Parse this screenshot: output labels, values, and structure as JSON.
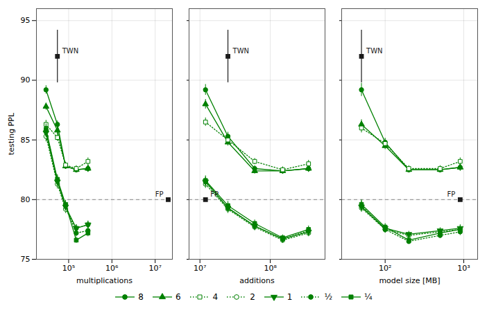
{
  "chart_data": [
    {
      "type": "line",
      "log": "x",
      "grid": true,
      "legend": "bottom",
      "xlabel": "multiplications",
      "ylabel": "testing PPL",
      "xlim": [
        18000,
        25000000
      ],
      "xticks": [
        {
          "value": 100000,
          "label": "10⁵"
        },
        {
          "value": 1000000,
          "label": "10⁶"
        },
        {
          "value": 10000000,
          "label": "10⁷"
        }
      ],
      "ylim": [
        75,
        96
      ],
      "yticks": [
        75,
        80,
        85,
        90,
        95
      ],
      "x": [
        30000,
        55000,
        85000,
        150000,
        280000
      ],
      "series": [
        {
          "name": "8",
          "color": "#008000",
          "marker": "circle",
          "line_style": "solid",
          "values": [
            89.2,
            86.3,
            82.8,
            82.5,
            82.6
          ],
          "errors": [
            0.35,
            0.3,
            0.25,
            0.25,
            0.3
          ]
        },
        {
          "name": "6",
          "color": "#008000",
          "marker": "triangle-up",
          "line_style": "solid",
          "values": [
            87.8,
            85.8,
            82.8,
            82.5,
            82.6
          ],
          "errors": [
            0.3,
            0.3,
            0.25,
            0.25,
            0.3
          ]
        },
        {
          "name": "4",
          "color": "#008000",
          "marker": "square-open",
          "line_style": "dotted",
          "values": [
            86.3,
            85.2,
            82.9,
            82.6,
            83.2
          ],
          "errors": [
            0.35,
            0.3,
            0.25,
            0.25,
            0.3
          ]
        },
        {
          "name": "2",
          "color": "#008000",
          "marker": "circle-open",
          "line_style": "dotted",
          "values": [
            85.3,
            81.3,
            79.2,
            77.6,
            77.9
          ],
          "errors": [
            0.45,
            0.4,
            0.35,
            0.3,
            0.3
          ]
        },
        {
          "name": "1",
          "color": "#008000",
          "marker": "triangle-down",
          "line_style": "solid",
          "values": [
            85.6,
            81.5,
            79.4,
            77.6,
            77.9
          ],
          "errors": [
            0.4,
            0.4,
            0.35,
            0.3,
            0.3
          ]
        },
        {
          "name": "½",
          "color": "#008000",
          "marker": "circle",
          "line_style": "dotted",
          "values": [
            85.8,
            81.6,
            79.5,
            77.2,
            77.4
          ],
          "errors": [
            0.45,
            0.4,
            0.35,
            0.3,
            0.3
          ]
        },
        {
          "name": "¼",
          "color": "#008000",
          "marker": "square",
          "line_style": "solid",
          "values": [
            85.9,
            81.7,
            79.6,
            76.6,
            77.2
          ],
          "errors": [
            0.45,
            0.4,
            0.35,
            0.25,
            0.3
          ]
        }
      ],
      "hline": {
        "value": 80.0,
        "color": "#888888",
        "line_style": "dashed"
      },
      "annotations": [
        {
          "text": "FP",
          "x": 20000000,
          "y": 80.0,
          "error": 0.15,
          "color": "#1a1a1a",
          "marker": "square"
        },
        {
          "text": "TWN",
          "x": 55000,
          "y": 92.0,
          "error": 2.2,
          "color": "#1a1a1a",
          "marker": "square"
        }
      ]
    },
    {
      "type": "line",
      "log": "x",
      "grid": true,
      "legend": "bottom",
      "tick_labels": "x",
      "xlabel": "additions",
      "xlim": [
        7000000,
        600000000
      ],
      "xticks": [
        {
          "value": 10000000,
          "label": "10⁷"
        },
        {
          "value": 100000000,
          "label": "10⁸"
        }
      ],
      "ylim": [
        75,
        96
      ],
      "yticks": [
        75,
        80,
        85,
        90,
        95
      ],
      "x": [
        12000000,
        25000000,
        60000000,
        150000000,
        350000000
      ],
      "series": [
        {
          "name": "8",
          "color": "#008000",
          "marker": "circle",
          "line_style": "solid",
          "values": [
            89.2,
            85.3,
            82.6,
            82.4,
            82.6
          ],
          "errors": [
            0.45,
            0.35,
            0.25,
            0.25,
            0.3
          ]
        },
        {
          "name": "6",
          "color": "#008000",
          "marker": "triangle-up",
          "line_style": "solid",
          "values": [
            88.0,
            84.8,
            82.4,
            82.4,
            82.6
          ],
          "errors": [
            0.4,
            0.3,
            0.25,
            0.25,
            0.3
          ]
        },
        {
          "name": "4",
          "color": "#008000",
          "marker": "square-open",
          "line_style": "dotted",
          "values": [
            86.5,
            85.0,
            83.2,
            82.5,
            83.0
          ],
          "errors": [
            0.35,
            0.3,
            0.25,
            0.25,
            0.3
          ]
        },
        {
          "name": "2",
          "color": "#008000",
          "marker": "circle-open",
          "line_style": "dotted",
          "values": [
            81.3,
            79.2,
            77.7,
            76.6,
            77.2
          ],
          "errors": [
            0.35,
            0.35,
            0.3,
            0.25,
            0.3
          ]
        },
        {
          "name": "1",
          "color": "#008000",
          "marker": "triangle-down",
          "line_style": "solid",
          "values": [
            81.5,
            79.3,
            77.8,
            76.7,
            77.3
          ],
          "errors": [
            0.35,
            0.35,
            0.3,
            0.25,
            0.3
          ]
        },
        {
          "name": "½",
          "color": "#008000",
          "marker": "circle",
          "line_style": "dotted",
          "values": [
            81.5,
            79.3,
            77.8,
            76.7,
            77.4
          ],
          "errors": [
            0.4,
            0.35,
            0.3,
            0.25,
            0.3
          ]
        },
        {
          "name": "¼",
          "color": "#008000",
          "marker": "square",
          "line_style": "solid",
          "values": [
            81.6,
            79.5,
            78.0,
            76.8,
            77.5
          ],
          "errors": [
            0.4,
            0.35,
            0.3,
            0.25,
            0.3
          ]
        }
      ],
      "hline": {
        "value": 80.0,
        "color": "#888888",
        "line_style": "dashed"
      },
      "annotations": [
        {
          "text": "FP",
          "x": 12000000,
          "y": 80.0,
          "error": 0.15,
          "color": "#1a1a1a",
          "marker": "square"
        },
        {
          "text": "TWN",
          "x": 25000000,
          "y": 92.0,
          "error": 2.2,
          "color": "#1a1a1a",
          "marker": "square"
        }
      ]
    },
    {
      "type": "line",
      "log": "x",
      "grid": true,
      "legend": "bottom",
      "tick_labels": "x",
      "xlabel": "model size [MB]",
      "xlim": [
        28,
        1500
      ],
      "xticks": [
        {
          "value": 100,
          "label": "10²"
        },
        {
          "value": 1000,
          "label": "10³"
        }
      ],
      "ylim": [
        75,
        96
      ],
      "yticks": [
        75,
        80,
        85,
        90,
        95
      ],
      "x": [
        50,
        100,
        200,
        500,
        900
      ],
      "series": [
        {
          "name": "8",
          "color": "#008000",
          "marker": "circle",
          "line_style": "solid",
          "values": [
            89.2,
            84.8,
            82.5,
            82.5,
            82.7
          ],
          "errors": [
            0.55,
            0.35,
            0.25,
            0.25,
            0.3
          ]
        },
        {
          "name": "6",
          "color": "#008000",
          "marker": "triangle-up",
          "line_style": "solid",
          "values": [
            86.3,
            84.5,
            82.5,
            82.5,
            82.7
          ],
          "errors": [
            0.4,
            0.3,
            0.25,
            0.25,
            0.3
          ]
        },
        {
          "name": "4",
          "color": "#008000",
          "marker": "square-open",
          "line_style": "dotted",
          "values": [
            86.0,
            84.7,
            82.6,
            82.6,
            83.2
          ],
          "errors": [
            0.4,
            0.3,
            0.25,
            0.25,
            0.3
          ]
        },
        {
          "name": "2",
          "color": "#008000",
          "marker": "circle-open",
          "line_style": "dotted",
          "values": [
            79.3,
            77.5,
            77.0,
            77.3,
            77.5
          ],
          "errors": [
            0.35,
            0.3,
            0.25,
            0.25,
            0.3
          ]
        },
        {
          "name": "1",
          "color": "#008000",
          "marker": "triangle-down",
          "line_style": "solid",
          "values": [
            79.4,
            77.6,
            77.1,
            77.4,
            77.6
          ],
          "errors": [
            0.35,
            0.3,
            0.25,
            0.25,
            0.3
          ]
        },
        {
          "name": "½",
          "color": "#008000",
          "marker": "circle",
          "line_style": "dotted",
          "values": [
            79.5,
            77.5,
            76.5,
            77.0,
            77.3
          ],
          "errors": [
            0.4,
            0.3,
            0.25,
            0.25,
            0.3
          ]
        },
        {
          "name": "¼",
          "color": "#008000",
          "marker": "square",
          "line_style": "solid",
          "values": [
            79.6,
            77.7,
            76.6,
            77.2,
            77.5
          ],
          "errors": [
            0.4,
            0.3,
            0.25,
            0.25,
            0.3
          ]
        }
      ],
      "hline": {
        "value": 80.0,
        "color": "#888888",
        "line_style": "dashed"
      },
      "annotations": [
        {
          "text": "FP",
          "x": 900,
          "y": 80.0,
          "error": 0.15,
          "color": "#1a1a1a",
          "marker": "square"
        },
        {
          "text": "TWN",
          "x": 50,
          "y": 92.0,
          "error": 2.2,
          "color": "#1a1a1a",
          "marker": "square"
        }
      ]
    }
  ]
}
